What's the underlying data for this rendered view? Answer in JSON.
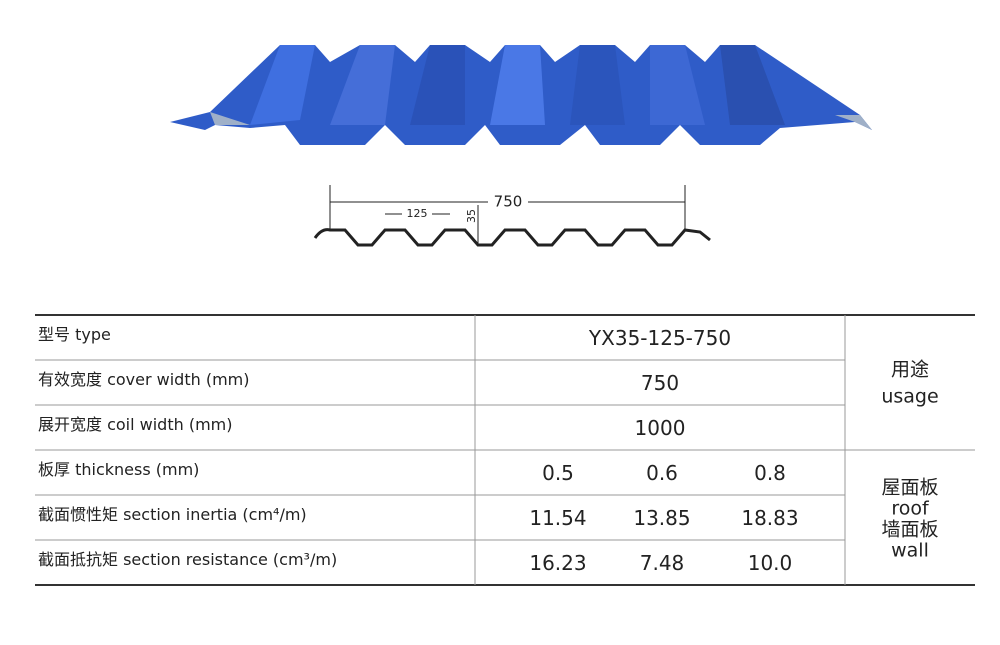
{
  "diagram": {
    "total_width": "750",
    "pitch": "125",
    "height": "35"
  },
  "table": {
    "rows": [
      {
        "label": "型号  type",
        "values": [
          "YX35-125-750"
        ]
      },
      {
        "label": "有效宽度 cover width (mm)",
        "values": [
          "750"
        ]
      },
      {
        "label": "展开宽度 coil width (mm)",
        "values": [
          "1000"
        ]
      },
      {
        "label": "板厚  thickness (mm)",
        "values": [
          "0.5",
          "0.6",
          "0.8"
        ]
      },
      {
        "label": "截面惯性矩  section inertia (cm⁴/m)",
        "values": [
          "11.54",
          "13.85",
          "18.83"
        ]
      },
      {
        "label": "截面抵抗矩  section resistance  (cm³/m)",
        "values": [
          "16.23",
          "7.48",
          "10.0"
        ]
      }
    ],
    "usage_header": [
      "用途",
      "usage"
    ],
    "usage_values": [
      "屋面板",
      "roof",
      "墙面板",
      "wall"
    ]
  }
}
